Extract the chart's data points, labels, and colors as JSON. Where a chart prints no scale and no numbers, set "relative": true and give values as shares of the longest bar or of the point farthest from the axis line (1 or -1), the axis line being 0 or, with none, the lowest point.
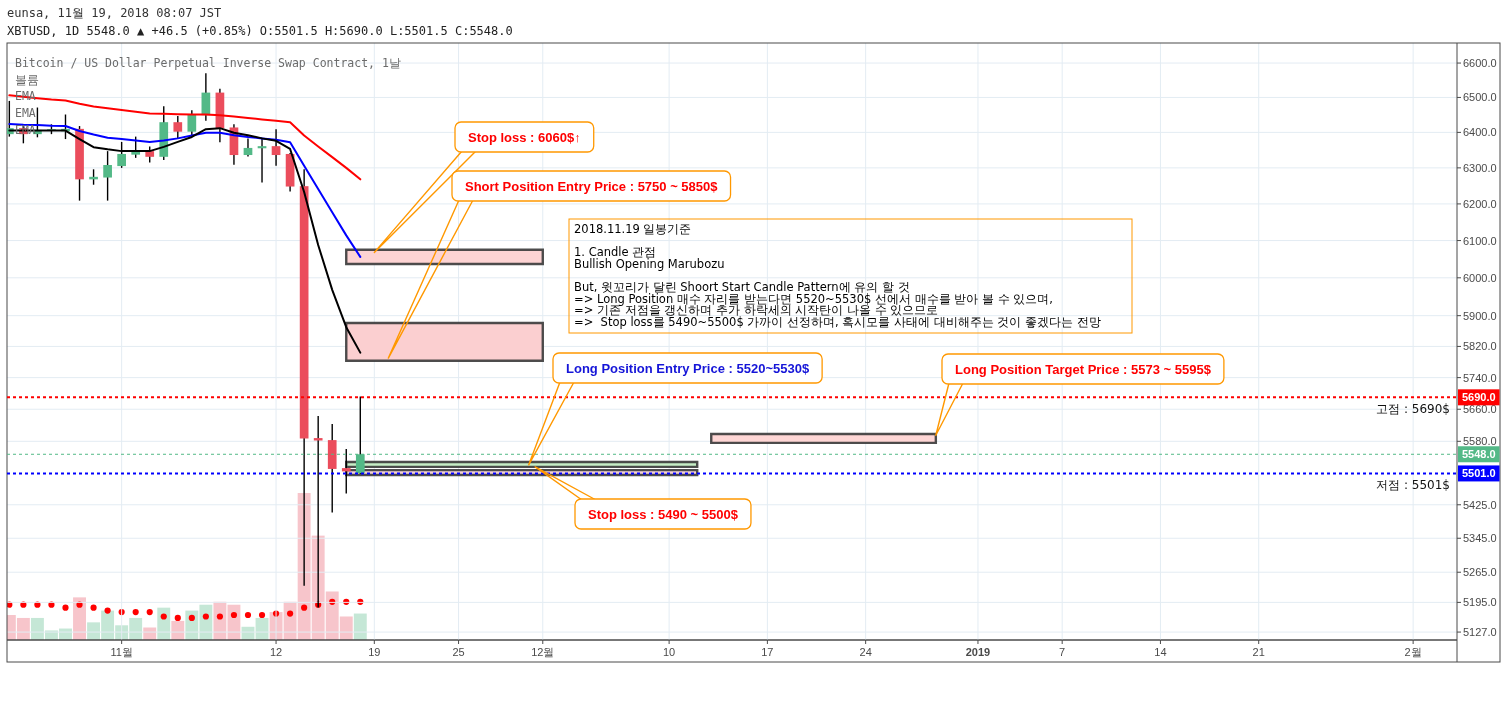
{
  "chart_data": [
    {
      "type": "candlestick",
      "title": "eunsa, 11월 19, 2018 08:07 JST",
      "subtitle": "XBTUSD, 1D 5548.0 ▲ +46.5 (+0.85%) O:5501.5 H:5690.0 L:5501.5 C:5548.0",
      "x": [
        "2018-10-24",
        "2018-10-25",
        "2018-10-26",
        "2018-10-27",
        "2018-10-28",
        "2018-10-29",
        "2018-10-30",
        "2018-10-31",
        "2018-11-01",
        "2018-11-02",
        "2018-11-03",
        "2018-11-04",
        "2018-11-05",
        "2018-11-06",
        "2018-11-07",
        "2018-11-08",
        "2018-11-09",
        "2018-11-10",
        "2018-11-11",
        "2018-11-12",
        "2018-11-13",
        "2018-11-14",
        "2018-11-15",
        "2018-11-16",
        "2018-11-17",
        "2018-11-18"
      ],
      "ohlc": [
        [
          6395,
          6488,
          6390,
          6412
        ],
        [
          6412,
          6421,
          6371,
          6395
        ],
        [
          6395,
          6469,
          6388,
          6407
        ],
        [
          6405,
          6421,
          6397,
          6409
        ],
        [
          6403,
          6449,
          6383,
          6410
        ],
        [
          6410,
          6416,
          6211,
          6268
        ],
        [
          6268,
          6294,
          6255,
          6275
        ],
        [
          6273,
          6345,
          6211,
          6308
        ],
        [
          6305,
          6371,
          6302,
          6339
        ],
        [
          6337,
          6386,
          6330,
          6347
        ],
        [
          6347,
          6358,
          6317,
          6331
        ],
        [
          6331,
          6473,
          6324,
          6429
        ],
        [
          6429,
          6445,
          6383,
          6402
        ],
        [
          6402,
          6461,
          6390,
          6451
        ],
        [
          6449,
          6568,
          6435,
          6514
        ],
        [
          6514,
          6523,
          6374,
          6412
        ],
        [
          6414,
          6421,
          6311,
          6336
        ],
        [
          6336,
          6381,
          6334,
          6356
        ],
        [
          6355,
          6383,
          6261,
          6361
        ],
        [
          6361,
          6407,
          6308,
          6336
        ],
        [
          6339,
          6340,
          6236,
          6248
        ],
        [
          6249,
          6294,
          5235,
          5587
        ],
        [
          5588,
          5641,
          5185,
          5582
        ],
        [
          5583,
          5621,
          5408,
          5512
        ],
        [
          5514,
          5559,
          5454,
          5506
        ],
        [
          5501.5,
          5690.0,
          5501.5,
          5548.0
        ]
      ],
      "colors": [
        "#53b987",
        "#eb4d5c",
        "#53b987",
        "#53b987",
        "#53b987",
        "#eb4d5c",
        "#53b987",
        "#53b987",
        "#53b987",
        "#53b987",
        "#eb4d5c",
        "#53b987",
        "#eb4d5c",
        "#53b987",
        "#53b987",
        "#eb4d5c",
        "#eb4d5c",
        "#53b987",
        "#53b987",
        "#eb4d5c",
        "#eb4d5c",
        "#eb4d5c",
        "#eb4d5c",
        "#eb4d5c",
        "#eb4d5c",
        "#53b987"
      ],
      "series": [
        {
          "type": "line",
          "x": [
            "2018-11-17",
            "2018-12-01"
          ],
          "values": [
            null,
            null
          ],
          "lower": [
            6037,
            6037
          ],
          "upper": [
            6075,
            6075
          ],
          "color": "#fdd3d3"
        },
        {
          "type": "line",
          "x": [
            "2018-11-17",
            "2018-12-01"
          ],
          "values": [
            null,
            null
          ],
          "lower": [
            5783,
            5783
          ],
          "upper": [
            5881,
            5881
          ],
          "color": "#fbcfd0"
        },
        {
          "type": "line",
          "x": [
            "2018-12-13",
            "2018-12-29"
          ],
          "values": [
            null,
            null
          ],
          "lower": [
            5576,
            5576
          ],
          "upper": [
            5598,
            5598
          ],
          "color": "#fed6d5"
        },
        {
          "type": "line",
          "x": [
            "2018-11-17",
            "2018-12-12"
          ],
          "values": [
            null,
            null
          ],
          "lower": [
            5517,
            5517
          ],
          "upper": [
            5529,
            5529
          ],
          "color": "#c6efc6"
        },
        {
          "type": "line",
          "x": [
            "2018-11-17",
            "2018-12-12"
          ],
          "values": [
            null,
            null
          ],
          "lower": [
            5497,
            5497
          ],
          "upper": [
            5509,
            5509
          ],
          "color": "#f3d3d8"
        },
        {
          "type": "line",
          "color": "#ff0000",
          "values": [
            6506,
            6502,
            6498,
            6494,
            6491,
            6482,
            6474,
            6469,
            6464,
            6459,
            6454,
            6453,
            6452,
            6451,
            6451,
            6449,
            6445,
            6441,
            6437,
            6433,
            6429,
            6391,
            6360,
            6330,
            6300,
            6268
          ]
        },
        {
          "type": "line",
          "color": "#0000ff",
          "values": [
            6424,
            6422,
            6421,
            6419,
            6418,
            6404,
            6394,
            6385,
            6381,
            6377,
            6373,
            6377,
            6383,
            6391,
            6399,
            6399,
            6392,
            6387,
            6383,
            6379,
            6372,
            6306,
            6241,
            6177,
            6114,
            6056
          ]
        },
        {
          "type": "line",
          "color": "#000000",
          "values": [
            6405,
            6405,
            6405,
            6405,
            6405,
            6381,
            6358,
            6352,
            6347,
            6347,
            6347,
            6359,
            6373,
            6387,
            6409,
            6412,
            6399,
            6392,
            6383,
            6376,
            6353,
            6233,
            6088,
            5968,
            5870,
            5804
          ]
        }
      ],
      "xlim": [
        "2018-10-23T20:00",
        "2019-02-04T03:00"
      ],
      "xticks": [
        {
          "value": "2018-11-01",
          "label": "11월"
        },
        {
          "value": "2018-11-12",
          "label": "12"
        },
        {
          "value": "2018-11-19",
          "label": "19"
        },
        {
          "value": "2018-11-25",
          "label": "25"
        },
        {
          "value": "2018-12-01",
          "label": "12월"
        },
        {
          "value": "2018-12-10",
          "label": "10"
        },
        {
          "value": "2018-12-17",
          "label": "17"
        },
        {
          "value": "2018-12-24",
          "label": "24"
        },
        {
          "value": "2019-01-01",
          "label": "2019"
        },
        {
          "value": "2019-01-07",
          "label": "7"
        },
        {
          "value": "2019-01-14",
          "label": "14"
        },
        {
          "value": "2019-01-21",
          "label": "21"
        },
        {
          "value": "2019-02-01",
          "label": "2월"
        }
      ],
      "ylim": [
        5109,
        6659
      ],
      "yticks": [
        {
          "value": 6600,
          "label": "6600.0"
        },
        {
          "value": 6500,
          "label": "6500.0"
        },
        {
          "value": 6400,
          "label": "6400.0"
        },
        {
          "value": 6300,
          "label": "6300.0"
        },
        {
          "value": 6200,
          "label": "6200.0"
        },
        {
          "value": 6100,
          "label": "6100.0"
        },
        {
          "value": 6000,
          "label": "6000.0"
        },
        {
          "value": 5900,
          "label": "5900.0"
        },
        {
          "value": 5820,
          "label": "5820.0"
        },
        {
          "value": 5740,
          "label": "5740.0"
        },
        {
          "value": 5660,
          "label": "5660.0"
        },
        {
          "value": 5580,
          "label": "5580.0"
        },
        {
          "value": 5425,
          "label": "5425.0"
        },
        {
          "value": 5345,
          "label": "5345.0"
        },
        {
          "value": 5265,
          "label": "5265.0"
        },
        {
          "value": 5195,
          "label": "5195.0"
        },
        {
          "value": 5127,
          "label": "5127.0"
        },
        {
          "value": 5690,
          "label": "5690.0"
        },
        {
          "value": 5548,
          "label": "5548.0"
        },
        {
          "value": 5501,
          "label": "5501.0"
        }
      ],
      "log": "y",
      "grid": true,
      "ref_lines": [
        {
          "axis": "y",
          "value": 5690,
          "label": "고점 : 5690$",
          "color": "#ff0000",
          "line_style": "dotted"
        },
        {
          "axis": "y",
          "value": 5548,
          "label": null,
          "color": "#53b987",
          "line_style": "dotted"
        },
        {
          "axis": "y",
          "value": 5501,
          "label": "저점 : 5501$",
          "color": "#0000ff",
          "line_style": "dotted"
        }
      ],
      "annotations": [
        "Bitcoin / US Dollar Perpetual Inverse Swap Contract, 1날",
        "볼륨",
        "EMA",
        "EMA",
        "EMA",
        {
          "text": "Stop loss : 6060$↑",
          "x": "2018-11-19",
          "y": 6068
        },
        {
          "text": "Short Position Entry Price : 5750 ~ 5850$",
          "x": "2018-11-20",
          "y": 5790
        },
        {
          "text": "Long Position Entry Price : 5520~5530$",
          "x": "2018-11-30",
          "y": 5522
        },
        {
          "text": "Long Position Target Price : 5573 ~ 5595$",
          "x": "2018-12-29",
          "y": 5595
        },
        {
          "text": "Stop loss : 5490 ~ 5500$",
          "x": "2018-11-30T11:00",
          "y": 5517
        },
        "2018.11.19 일봉기준\n\n1. Candle 관점\nBullish Opening Marubozu\n\nBut, 윗꼬리가 달린 Shoort Start Candle Pattern에 유의 할 것\n=> Long Position 매수 자리를 받는다면 5520~5530$ 선에서 매수를 받아 볼 수 있으며,\n=> 기존 저점을 갱신하며 추가 하락세의 시작탄이 나올 수 있으므로\n=>  Stop loss를 5490~5500$ 가까이 선정하며, 혹시모를 사태에 대비해주는 것이 좋겠다는 전망"
      ]
    },
    {
      "type": "bar",
      "relative": true,
      "x": [
        "2018-10-24",
        "2018-10-25",
        "2018-10-26",
        "2018-10-27",
        "2018-10-28",
        "2018-10-29",
        "2018-10-30",
        "2018-10-31",
        "2018-11-01",
        "2018-11-02",
        "2018-11-03",
        "2018-11-04",
        "2018-11-05",
        "2018-11-06",
        "2018-11-07",
        "2018-11-08",
        "2018-11-09",
        "2018-11-10",
        "2018-11-11",
        "2018-11-12",
        "2018-11-13",
        "2018-11-14",
        "2018-11-15",
        "2018-11-16",
        "2018-11-17",
        "2018-11-18"
      ],
      "xlim": [
        "2018-10-23T20:00",
        "2019-02-04T03:00"
      ],
      "series": [
        {
          "type": "bar",
          "values": [
            0.17,
            0.15,
            0.15,
            0.065,
            0.078,
            0.29,
            0.12,
            0.2,
            0.1,
            0.15,
            0.085,
            0.22,
            0.13,
            0.2,
            0.24,
            0.26,
            0.24,
            0.09,
            0.15,
            0.19,
            0.26,
            1,
            0.71,
            0.33,
            0.16,
            0.18
          ],
          "colors": [
            "#f7c5cb",
            "#f7c5cb",
            "#c5e7d6",
            "#c5e7d6",
            "#c5e7d6",
            "#f7c5cb",
            "#c5e7d6",
            "#c5e7d6",
            "#c5e7d6",
            "#c5e7d6",
            "#f7c5cb",
            "#c5e7d6",
            "#f7c5cb",
            "#c5e7d6",
            "#c5e7d6",
            "#f7c5cb",
            "#f7c5cb",
            "#c5e7d6",
            "#c5e7d6",
            "#f7c5cb",
            "#f7c5cb",
            "#f7c5cb",
            "#f7c5cb",
            "#f7c5cb",
            "#f7c5cb",
            "#c5e7d6"
          ]
        },
        {
          "type": "scatter",
          "marker": "circle",
          "color": "#ff0000",
          "x": [
            "2018-10-24",
            "2018-10-25",
            "2018-10-26",
            "2018-10-27",
            "2018-10-28",
            "2018-10-29",
            "2018-10-30",
            "2018-10-31",
            "2018-11-01",
            "2018-11-02",
            "2018-11-03",
            "2018-11-04",
            "2018-11-05",
            "2018-11-06",
            "2018-11-07",
            "2018-11-08",
            "2018-11-09",
            "2018-11-10",
            "2018-11-11",
            "2018-11-12",
            "2018-11-13",
            "2018-11-14",
            "2018-11-15",
            "2018-11-16",
            "2018-11-17",
            "2018-11-18"
          ],
          "values": [
            0.24,
            0.24,
            0.24,
            0.24,
            0.22,
            0.24,
            0.22,
            0.2,
            0.19,
            0.19,
            0.19,
            0.16,
            0.15,
            0.15,
            0.16,
            0.16,
            0.17,
            0.17,
            0.17,
            0.18,
            0.18,
            0.22,
            0.24,
            0.26,
            0.26,
            0.26
          ]
        }
      ]
    }
  ]
}
